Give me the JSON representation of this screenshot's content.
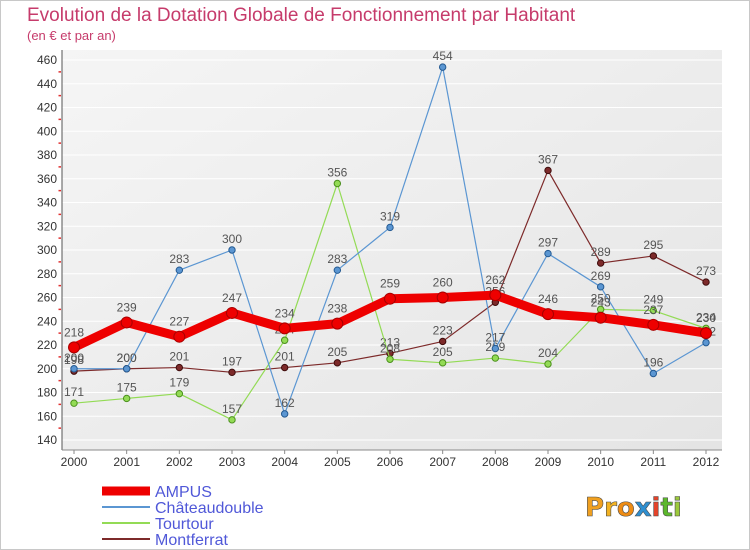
{
  "chart_data": {
    "type": "line",
    "title": "Evolution de la Dotation Globale de Fonctionnement par Habitant",
    "subtitle": "(en € et par an)",
    "x": [
      "2000",
      "2001",
      "2002",
      "2003",
      "2004",
      "2005",
      "2006",
      "2007",
      "2008",
      "2009",
      "2010",
      "2011",
      "2012"
    ],
    "ylim": [
      140,
      460
    ],
    "yticks": [
      140,
      160,
      180,
      200,
      220,
      240,
      260,
      280,
      300,
      320,
      340,
      360,
      380,
      400,
      420,
      440,
      460
    ],
    "grid": true,
    "data_labels": true,
    "legend_position": "bottom-left",
    "series": [
      {
        "name": "AMPUS",
        "color": "#ee0000",
        "values": [
          218,
          239,
          227,
          247,
          234,
          238,
          259,
          260,
          262,
          246,
          243,
          237,
          230
        ]
      },
      {
        "name": "Châteaudouble",
        "color": "#5b96d2",
        "values": [
          200,
          200,
          283,
          300,
          162,
          283,
          319,
          454,
          217,
          297,
          269,
          196,
          222
        ]
      },
      {
        "name": "Tourtour",
        "color": "#93db55",
        "values": [
          171,
          175,
          179,
          157,
          224,
          356,
          208,
          205,
          209,
          204,
          250,
          249,
          234
        ]
      },
      {
        "name": "Montferrat",
        "color": "#7d2a2a",
        "values": [
          198,
          200,
          201,
          197,
          201,
          205,
          213,
          223,
          256,
          367,
          289,
          295,
          273
        ]
      }
    ]
  },
  "logo": {
    "letters": [
      {
        "char": "P",
        "color": "#f0a020"
      },
      {
        "char": "r",
        "color": "#f2b222"
      },
      {
        "char": "o",
        "color": "#ee8c14"
      },
      {
        "char": "x",
        "color": "#2f8fd0"
      },
      {
        "char": "i",
        "color": "#e4432a"
      },
      {
        "char": "t",
        "color": "#5cb82c"
      },
      {
        "char": "i",
        "color": "#9cc93c"
      }
    ]
  }
}
